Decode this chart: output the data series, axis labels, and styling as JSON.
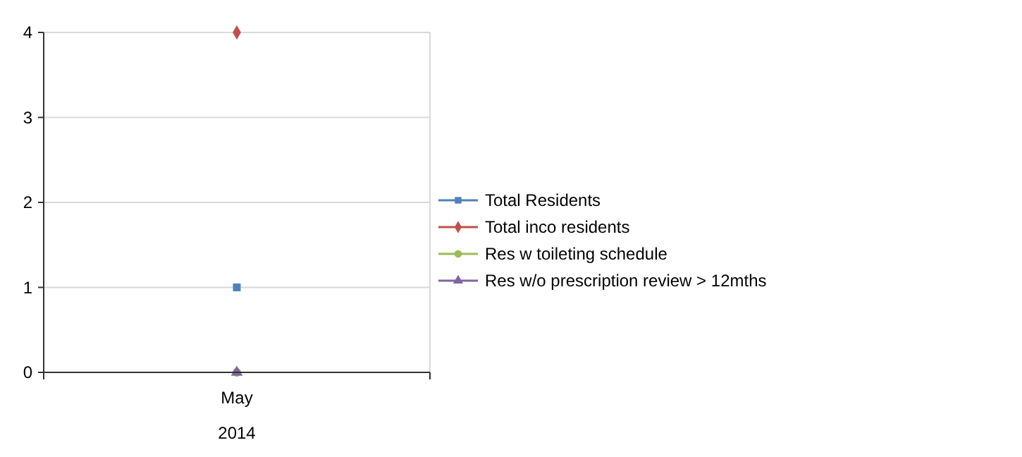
{
  "chart_data": {
    "type": "line",
    "categories": [
      "May"
    ],
    "xlabel": "2014",
    "ylim": [
      0,
      4
    ],
    "yticks": [
      0,
      1,
      2,
      3,
      4
    ],
    "grid": "y",
    "legend": "right",
    "series": [
      {
        "name": "Total Residents",
        "color": "#4f81bd",
        "values": [
          1
        ],
        "marker": "square"
      },
      {
        "name": "Total inco residents",
        "color": "#c0504d",
        "values": [
          4
        ],
        "marker": "diamond"
      },
      {
        "name": "Res w toileting schedule",
        "color": "#9bbb59",
        "values": [
          0
        ],
        "marker": "circle"
      },
      {
        "name": "Res w/o prescription review > 12mths",
        "color": "#8064a2",
        "values": [
          0
        ],
        "marker": "triangle"
      }
    ]
  }
}
